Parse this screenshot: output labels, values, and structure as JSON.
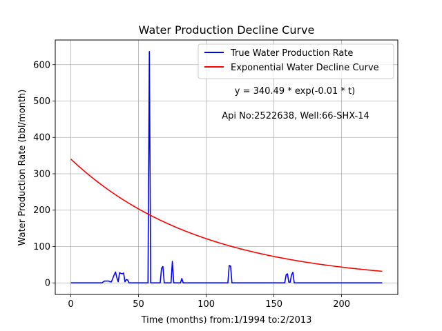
{
  "chart_data": {
    "type": "line",
    "title": "Water Production Decline Curve",
    "xlabel": "Time (months) from:1/1994 to:2/2013",
    "ylabel": "Water Production Rate (bbl/month)",
    "xlim": [
      -11.5,
      241.5
    ],
    "ylim": [
      -31.8,
      667.8
    ],
    "xticks": [
      0,
      50,
      100,
      150,
      200
    ],
    "yticks": [
      0,
      100,
      200,
      300,
      400,
      500,
      600
    ],
    "grid": true,
    "legend_position": "top-right",
    "series": [
      {
        "name": "True Water Production Rate",
        "color": "#0000ff",
        "points": [
          [
            0,
            0
          ],
          [
            23,
            0
          ],
          [
            24,
            3
          ],
          [
            25,
            5
          ],
          [
            28,
            5
          ],
          [
            29,
            3
          ],
          [
            30,
            3
          ],
          [
            32,
            22
          ],
          [
            33,
            30
          ],
          [
            34,
            14
          ],
          [
            35,
            3
          ],
          [
            36,
            28
          ],
          [
            37,
            26
          ],
          [
            38,
            25
          ],
          [
            39,
            27
          ],
          [
            40,
            3
          ],
          [
            41,
            9
          ],
          [
            42,
            8
          ],
          [
            43,
            0
          ],
          [
            57,
            0
          ],
          [
            58,
            636
          ],
          [
            59,
            0
          ],
          [
            66,
            0
          ],
          [
            67,
            40
          ],
          [
            68,
            45
          ],
          [
            69,
            0
          ],
          [
            74,
            0
          ],
          [
            75,
            59
          ],
          [
            76,
            0
          ],
          [
            81,
            0
          ],
          [
            82,
            12
          ],
          [
            83,
            0
          ],
          [
            116,
            0
          ],
          [
            117,
            48
          ],
          [
            118,
            46
          ],
          [
            119,
            0
          ],
          [
            158,
            0
          ],
          [
            159,
            22
          ],
          [
            160,
            25
          ],
          [
            161,
            2
          ],
          [
            162,
            2
          ],
          [
            163,
            22
          ],
          [
            164,
            29
          ],
          [
            165,
            0
          ],
          [
            230,
            0
          ]
        ]
      },
      {
        "name": "Exponential Water Decline Curve",
        "color": "#ff0000",
        "equation": {
          "a": 340.49,
          "b": 0.0103,
          "t_start": 0,
          "t_end": 230
        },
        "values_at_ticks": {
          "0": 340.49,
          "50": 203,
          "100": 121,
          "150": 72,
          "200": 43,
          "230": 32
        }
      }
    ],
    "annotations": [
      "y = 340.49 * exp(-0.01 * t)",
      "Api No:2522638, Well:66-SHX-14"
    ]
  }
}
